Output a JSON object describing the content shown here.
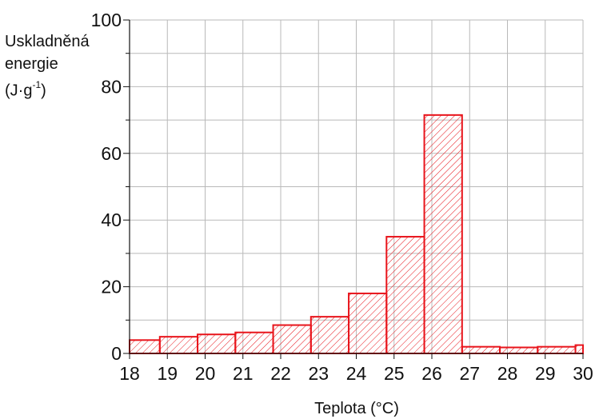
{
  "chart_data": {
    "type": "bar",
    "xlabel": "Teplota (°C)",
    "ylabel": {
      "line1": "Uskladněná",
      "line2": "energie",
      "line3_prefix": "(J·g",
      "line3_sup": "-1",
      "line3_suffix": ")"
    },
    "x_ticks": [
      "18",
      "19",
      "20",
      "21",
      "22",
      "23",
      "24",
      "25",
      "26",
      "27",
      "28",
      "29",
      "30"
    ],
    "y_ticks": [
      "0",
      "20",
      "40",
      "60",
      "80",
      "100"
    ],
    "xlim": [
      18,
      30
    ],
    "ylim": [
      0,
      100
    ],
    "grid": true,
    "bars": [
      {
        "x0": 18.0,
        "x1": 18.8,
        "value": 4
      },
      {
        "x0": 18.8,
        "x1": 19.8,
        "value": 5
      },
      {
        "x0": 19.8,
        "x1": 20.8,
        "value": 5.7
      },
      {
        "x0": 20.8,
        "x1": 21.8,
        "value": 6.3
      },
      {
        "x0": 21.8,
        "x1": 22.8,
        "value": 8.5
      },
      {
        "x0": 22.8,
        "x1": 23.8,
        "value": 11
      },
      {
        "x0": 23.8,
        "x1": 24.8,
        "value": 18
      },
      {
        "x0": 24.8,
        "x1": 25.8,
        "value": 35
      },
      {
        "x0": 25.8,
        "x1": 26.8,
        "value": 71.5
      },
      {
        "x0": 26.8,
        "x1": 27.8,
        "value": 2
      },
      {
        "x0": 27.8,
        "x1": 28.8,
        "value": 1.8
      },
      {
        "x0": 28.8,
        "x1": 29.8,
        "value": 2
      },
      {
        "x0": 29.8,
        "x1": 30.0,
        "value": 2.5
      }
    ],
    "bar_color": "#e8141b",
    "grid_color": "#b9b9b9"
  }
}
